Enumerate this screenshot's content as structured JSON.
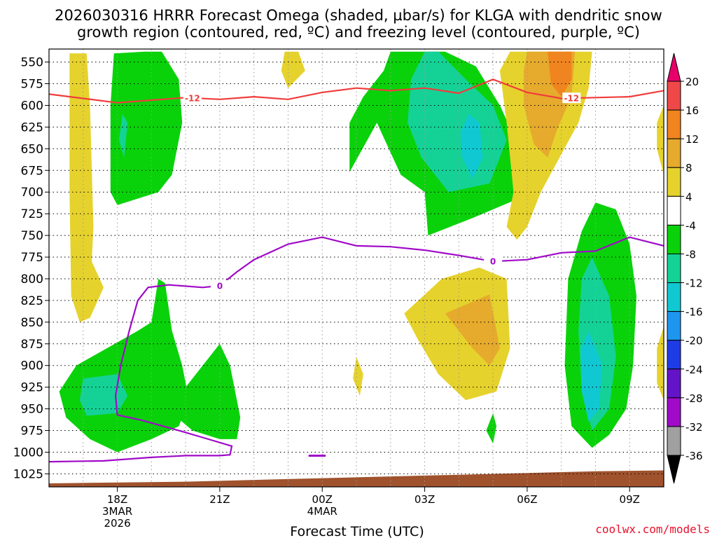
{
  "chart_data": {
    "type": "contour-time-height",
    "title": {
      "line1": "2026030316 HRRR Forecast Omega (shaded, µbar/s) for KLGA with dendritic snow",
      "line2": "growth region (contoured, red, ºC) and freezing level (contoured, purple, ºC)"
    },
    "xlabel": "Forecast Time (UTC)",
    "x_ticks": [
      {
        "hour": 18,
        "lines": [
          "18Z",
          "3MAR",
          "2026"
        ]
      },
      {
        "hour": 21,
        "lines": [
          "21Z"
        ]
      },
      {
        "hour": 24,
        "lines": [
          "00Z",
          "4MAR"
        ]
      },
      {
        "hour": 27,
        "lines": [
          "03Z"
        ]
      },
      {
        "hour": 30,
        "lines": [
          "06Z"
        ]
      },
      {
        "hour": 33,
        "lines": [
          "09Z"
        ]
      }
    ],
    "xlim_hours": [
      16.0,
      34.0
    ],
    "ylim_hpa": [
      1040,
      535
    ],
    "pressure_levels": [
      550,
      575,
      600,
      625,
      650,
      675,
      700,
      725,
      750,
      775,
      800,
      825,
      850,
      875,
      900,
      925,
      950,
      975,
      1000,
      1025
    ],
    "colorbar": {
      "levels": [
        "20",
        "16",
        "12",
        "8",
        "4",
        "-4",
        "-8",
        "-12",
        "-16",
        "-20",
        "-24",
        "-28",
        "-32",
        "-36"
      ],
      "colors": [
        "#e8006a",
        "#f04848",
        "#f0841e",
        "#e6aa2c",
        "#e6d22c",
        "#ffffff",
        "#0ad20a",
        "#14d296",
        "#10c8d2",
        "#1e96f0",
        "#1e3ce6",
        "#6414c8",
        "#a00ac8",
        "#a0a0a0",
        "#000000"
      ]
    },
    "contours": {
      "dgz": {
        "label": "-12",
        "color": "#f03c3c",
        "points": [
          [
            16.0,
            587
          ],
          [
            17,
            592
          ],
          [
            18,
            597
          ],
          [
            19,
            594
          ],
          [
            20,
            591
          ],
          [
            21,
            593
          ],
          [
            22,
            590
          ],
          [
            23,
            593
          ],
          [
            24,
            585
          ],
          [
            25,
            580
          ],
          [
            26,
            583
          ],
          [
            27,
            580
          ],
          [
            28,
            586
          ],
          [
            29,
            570
          ],
          [
            30,
            585
          ],
          [
            31,
            592
          ],
          [
            32,
            591
          ],
          [
            33,
            590
          ],
          [
            34,
            583
          ]
        ]
      },
      "freezing": {
        "label": "0",
        "color": "#a00ac8",
        "points": [
          [
            16.0,
            1011
          ],
          [
            17.6,
            1010
          ],
          [
            19,
            1006
          ],
          [
            20,
            1004
          ],
          [
            21,
            1004
          ],
          [
            21.3,
            1003
          ],
          [
            21.35,
            993
          ],
          [
            20.5,
            983
          ],
          [
            19.8,
            975
          ],
          [
            18.7,
            963
          ],
          [
            18,
            957
          ],
          [
            17.95,
            935
          ],
          [
            18.1,
            900
          ],
          [
            18.35,
            860
          ],
          [
            18.6,
            825
          ],
          [
            18.9,
            810
          ],
          [
            19.5,
            807
          ],
          [
            20.5,
            810
          ],
          [
            21,
            808
          ],
          [
            21.5,
            792
          ],
          [
            22,
            778
          ],
          [
            23,
            760
          ],
          [
            24,
            752
          ],
          [
            25,
            762
          ],
          [
            26,
            763
          ],
          [
            27,
            767
          ],
          [
            28,
            773
          ],
          [
            29,
            780
          ],
          [
            30,
            778
          ],
          [
            31,
            770
          ],
          [
            32,
            768
          ],
          [
            33,
            752
          ],
          [
            34,
            762
          ]
        ]
      }
    },
    "shaded_regions": [
      {
        "color": "#e6d22c",
        "points": [
          [
            16.6,
            540
          ],
          [
            17.1,
            540
          ],
          [
            17.2,
            600
          ],
          [
            17.3,
            740
          ],
          [
            17.25,
            780
          ],
          [
            17.6,
            810
          ],
          [
            17.2,
            845
          ],
          [
            16.9,
            850
          ],
          [
            16.65,
            820
          ],
          [
            16.6,
            700
          ],
          [
            16.6,
            620
          ]
        ]
      },
      {
        "color": "#0ad20a",
        "points": [
          [
            18.8,
            538
          ],
          [
            19.3,
            538
          ],
          [
            19.8,
            570
          ],
          [
            19.9,
            620
          ],
          [
            19.6,
            680
          ],
          [
            19.2,
            700
          ],
          [
            18,
            715
          ],
          [
            17.8,
            700
          ],
          [
            17.8,
            600
          ],
          [
            17.9,
            540
          ]
        ]
      },
      {
        "color": "#14d296",
        "points": [
          [
            18.15,
            610
          ],
          [
            18.3,
            620
          ],
          [
            18.2,
            660
          ],
          [
            18.05,
            640
          ]
        ]
      },
      {
        "color": "#e6d22c",
        "points": [
          [
            23.3,
            538
          ],
          [
            23.5,
            560
          ],
          [
            23.0,
            580
          ],
          [
            22.8,
            560
          ],
          [
            22.9,
            538
          ]
        ]
      },
      {
        "color": "#0ad20a",
        "points": [
          [
            26.6,
            538
          ],
          [
            27.6,
            538
          ],
          [
            28.5,
            555
          ],
          [
            29.2,
            600
          ],
          [
            29.9,
            660
          ],
          [
            30.2,
            690
          ],
          [
            29.9,
            705
          ],
          [
            28.4,
            730
          ],
          [
            27.1,
            750
          ],
          [
            27.0,
            700
          ],
          [
            26.3,
            680
          ],
          [
            25.6,
            620
          ],
          [
            24.8,
            677
          ],
          [
            24.8,
            620
          ],
          [
            25.2,
            590
          ],
          [
            25.8,
            560
          ],
          [
            26.0,
            538
          ]
        ]
      },
      {
        "color": "#14d296",
        "points": [
          [
            27.0,
            538
          ],
          [
            27.4,
            538
          ],
          [
            28.2,
            570
          ],
          [
            29.0,
            600
          ],
          [
            29.4,
            640
          ],
          [
            28.9,
            690
          ],
          [
            27.7,
            700
          ],
          [
            26.9,
            660
          ],
          [
            26.5,
            620
          ],
          [
            26.6,
            570
          ]
        ]
      },
      {
        "color": "#10c8d2",
        "points": [
          [
            28.3,
            610
          ],
          [
            28.6,
            620
          ],
          [
            28.7,
            660
          ],
          [
            28.4,
            685
          ],
          [
            28.1,
            660
          ],
          [
            28.05,
            630
          ]
        ]
      },
      {
        "color": "#e6d22c",
        "points": [
          [
            29.5,
            538
          ],
          [
            31.9,
            538
          ],
          [
            31.8,
            580
          ],
          [
            31.5,
            620
          ],
          [
            30.4,
            700
          ],
          [
            30.0,
            740
          ],
          [
            29.7,
            755
          ],
          [
            29.4,
            740
          ],
          [
            29.6,
            700
          ],
          [
            29.4,
            620
          ],
          [
            29.2,
            560
          ]
        ]
      },
      {
        "color": "#e6aa2c",
        "points": [
          [
            30.0,
            538
          ],
          [
            31.4,
            538
          ],
          [
            31.3,
            590
          ],
          [
            30.9,
            625
          ],
          [
            30.6,
            660
          ],
          [
            30.2,
            645
          ],
          [
            29.9,
            600
          ],
          [
            29.9,
            560
          ]
        ]
      },
      {
        "color": "#f0841e",
        "points": [
          [
            30.6,
            538
          ],
          [
            31.3,
            538
          ],
          [
            31.3,
            570
          ],
          [
            31.0,
            590
          ],
          [
            30.7,
            575
          ]
        ]
      },
      {
        "color": "#e6d22c",
        "points": [
          [
            34.0,
            600
          ],
          [
            33.8,
            620
          ],
          [
            33.8,
            650
          ],
          [
            34.0,
            680
          ]
        ]
      },
      {
        "color": "#0ad20a",
        "points": [
          [
            32.0,
            712
          ],
          [
            32.6,
            720
          ],
          [
            33.0,
            760
          ],
          [
            33.2,
            820
          ],
          [
            33.1,
            900
          ],
          [
            32.9,
            950
          ],
          [
            32.4,
            980
          ],
          [
            31.9,
            995
          ],
          [
            31.3,
            970
          ],
          [
            31.1,
            900
          ],
          [
            31.2,
            800
          ],
          [
            31.6,
            745
          ]
        ]
      },
      {
        "color": "#14d296",
        "points": [
          [
            31.9,
            775
          ],
          [
            32.4,
            820
          ],
          [
            32.6,
            890
          ],
          [
            32.4,
            950
          ],
          [
            31.9,
            975
          ],
          [
            31.6,
            930
          ],
          [
            31.5,
            860
          ],
          [
            31.6,
            800
          ]
        ]
      },
      {
        "color": "#10c8d2",
        "points": [
          [
            31.8,
            860
          ],
          [
            32.2,
            900
          ],
          [
            32.1,
            950
          ],
          [
            31.8,
            965
          ],
          [
            31.6,
            930
          ],
          [
            31.6,
            880
          ]
        ]
      },
      {
        "color": "#e6d22c",
        "points": [
          [
            34.0,
            855
          ],
          [
            33.8,
            880
          ],
          [
            33.8,
            920
          ],
          [
            34.0,
            940
          ]
        ]
      },
      {
        "color": "#e6d22c",
        "points": [
          [
            27.5,
            800
          ],
          [
            28.6,
            787
          ],
          [
            29.4,
            800
          ],
          [
            29.5,
            880
          ],
          [
            29.1,
            930
          ],
          [
            28.2,
            940
          ],
          [
            27.4,
            910
          ],
          [
            26.8,
            870
          ],
          [
            26.4,
            840
          ]
        ]
      },
      {
        "color": "#e6aa2c",
        "points": [
          [
            28.9,
            818
          ],
          [
            29.2,
            880
          ],
          [
            28.9,
            900
          ],
          [
            28.4,
            880
          ],
          [
            27.6,
            840
          ]
        ]
      },
      {
        "color": "#e6d22c",
        "points": [
          [
            25.0,
            890
          ],
          [
            25.2,
            910
          ],
          [
            25.1,
            935
          ],
          [
            24.9,
            915
          ]
        ]
      },
      {
        "color": "#0ad20a",
        "points": [
          [
            29.0,
            955
          ],
          [
            29.1,
            970
          ],
          [
            29.0,
            990
          ],
          [
            28.8,
            975
          ]
        ]
      },
      {
        "color": "#0ad20a",
        "points": [
          [
            19.2,
            800
          ],
          [
            19.4,
            805
          ],
          [
            19.6,
            860
          ],
          [
            19.9,
            900
          ],
          [
            20.1,
            940
          ],
          [
            19.8,
            970
          ],
          [
            19.0,
            985
          ],
          [
            18.0,
            1000
          ],
          [
            17.2,
            985
          ],
          [
            16.5,
            960
          ],
          [
            16.3,
            930
          ],
          [
            16.8,
            900
          ],
          [
            17.7,
            880
          ],
          [
            18.6,
            860
          ],
          [
            19.0,
            850
          ]
        ]
      },
      {
        "color": "#14d296",
        "points": [
          [
            17.0,
            915
          ],
          [
            18.0,
            910
          ],
          [
            18.3,
            935
          ],
          [
            18.0,
            955
          ],
          [
            17.1,
            958
          ],
          [
            16.9,
            940
          ]
        ]
      },
      {
        "color": "#0ad20a",
        "points": [
          [
            21.0,
            875
          ],
          [
            21.3,
            900
          ],
          [
            21.6,
            960
          ],
          [
            21.5,
            985
          ],
          [
            21.0,
            985
          ],
          [
            20.2,
            975
          ],
          [
            19.6,
            955
          ],
          [
            20.0,
            925
          ],
          [
            20.8,
            885
          ]
        ]
      },
      {
        "color": "#a0522d",
        "points": [
          [
            16.0,
            1040
          ],
          [
            16.0,
            1036
          ],
          [
            20,
            1034
          ],
          [
            24,
            1030
          ],
          [
            28,
            1026
          ],
          [
            32,
            1022
          ],
          [
            34,
            1021
          ],
          [
            34,
            1040
          ]
        ]
      }
    ],
    "small_marks": [
      {
        "color": "#a00ac8",
        "from": [
          23.6,
          1004
        ],
        "to": [
          24.1,
          1004
        ]
      }
    ]
  },
  "credit": "coolwx.com/models"
}
